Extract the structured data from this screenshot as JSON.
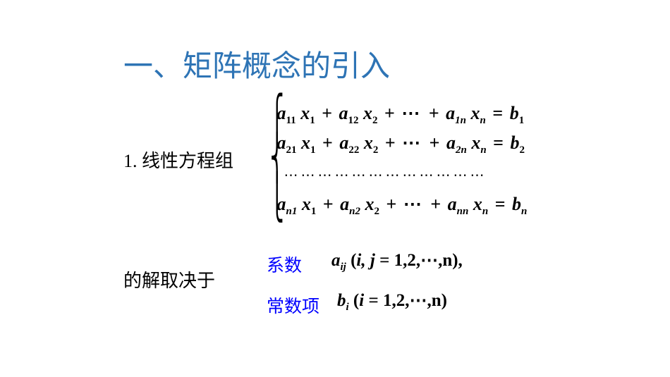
{
  "title": "一、矩阵概念的引入",
  "section_label": "1.  线性方程组",
  "equations": {
    "coef": "a",
    "var": "x",
    "rhs": "b",
    "plus": "+",
    "eq": "=",
    "cdots": "⋯",
    "row_dots": "⋯⋯⋯⋯⋯⋯⋯⋯⋯⋯⋯⋯",
    "sub_11": "11",
    "sub_12": "12",
    "sub_1n": "1n",
    "sub_21": "21",
    "sub_22": "22",
    "sub_2n": "2n",
    "sub_n1": "n1",
    "sub_n2": "n2",
    "sub_nn": "nn",
    "sub_1": "1",
    "sub_2": "2",
    "sub_n": "n"
  },
  "depends": "的解取决于",
  "coef_label": "系数",
  "coef_expr": {
    "a": "a",
    "sub_ij": "ij",
    "paren_l": "(",
    "body": "i, j",
    "eq": " = ",
    "range": "1,2,⋯,n",
    "paren_r": "),"
  },
  "const_label": "常数项",
  "const_expr": {
    "b": "b",
    "sub_i": "i",
    "paren_l": "(",
    "body": "i",
    "eq": " = ",
    "range": "1,2,⋯,n",
    "paren_r": ")"
  },
  "colors": {
    "title": "#2e74b5",
    "accent": "#0000ff",
    "text": "#000000",
    "bg": "#ffffff"
  }
}
